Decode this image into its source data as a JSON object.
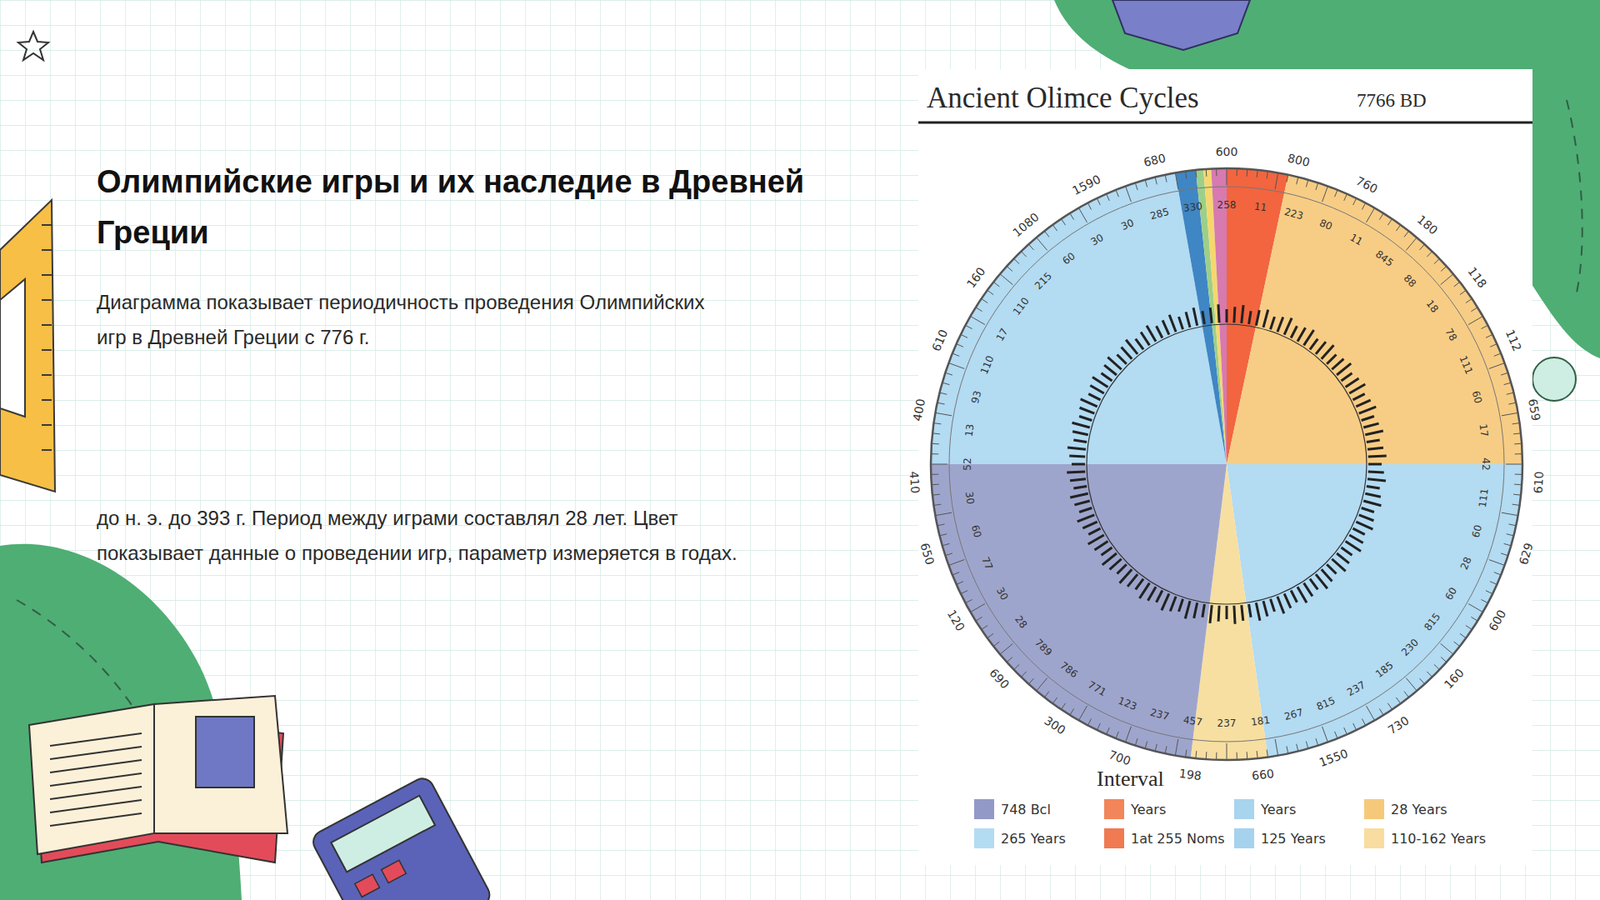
{
  "slide": {
    "title_lines": [
      "Олимпийские игры и их наследие в Древней",
      "Греции"
    ],
    "paragraphs": [
      [
        "Диаграмма показывает периодичность проведения Олимпийских",
        "игр в Древней Греции с 776 г."
      ],
      [
        "до н. э. до 393 г. Период между играми составлял 28 лет. Цвет",
        "показывает данные о проведении игр, параметр измеряется в годах."
      ]
    ]
  },
  "chart_data": {
    "type": "pie",
    "title": "Ancient Olimce Cycles",
    "subtitle": "7766 BD",
    "values": [
      12,
      78,
      82,
      15,
      83,
      80,
      4,
      1.5,
      1.5,
      3
    ],
    "colors": [
      "#f2653f",
      "#f7cd85",
      "#b3dbf2",
      "#f7dfa1",
      "#9ea5cc",
      "#b3dbf2",
      "#3f86c4",
      "#9ccf8a",
      "#f5d76e",
      "#d67ab0"
    ],
    "outer_labels": [
      600,
      800,
      760,
      180,
      118,
      112,
      659,
      610,
      629,
      600,
      160,
      730,
      1550,
      660,
      198,
      700,
      300,
      690,
      120,
      650,
      410,
      400,
      610,
      160,
      1080,
      1590,
      680
    ],
    "inner_labels": [
      258,
      11,
      223,
      80,
      11,
      845,
      88,
      18,
      78,
      111,
      60,
      17,
      42,
      111,
      60,
      28,
      60,
      815,
      230,
      185,
      237,
      815,
      267,
      181,
      237,
      457,
      237,
      123,
      771,
      786,
      789,
      28,
      30,
      77,
      60,
      30,
      52,
      13,
      93,
      110,
      17,
      110,
      215,
      60,
      30,
      30,
      285,
      330
    ],
    "legend_title": "Interval",
    "legend_items": [
      {
        "label": "748 Bcl",
        "color": "#9399c6"
      },
      {
        "label": "Years",
        "color": "#f2855a"
      },
      {
        "label": "Years",
        "color": "#a9d4ee"
      },
      {
        "label": "28 Years",
        "color": "#f6c97a"
      },
      {
        "label": "265 Years",
        "color": "#b3dcf2"
      },
      {
        "label": "1at 255 Noms",
        "color": "#f07a52"
      },
      {
        "label": "125 Years",
        "color": "#a6d2ee"
      },
      {
        "label": "110-162 Years",
        "color": "#f8dca0"
      }
    ]
  }
}
